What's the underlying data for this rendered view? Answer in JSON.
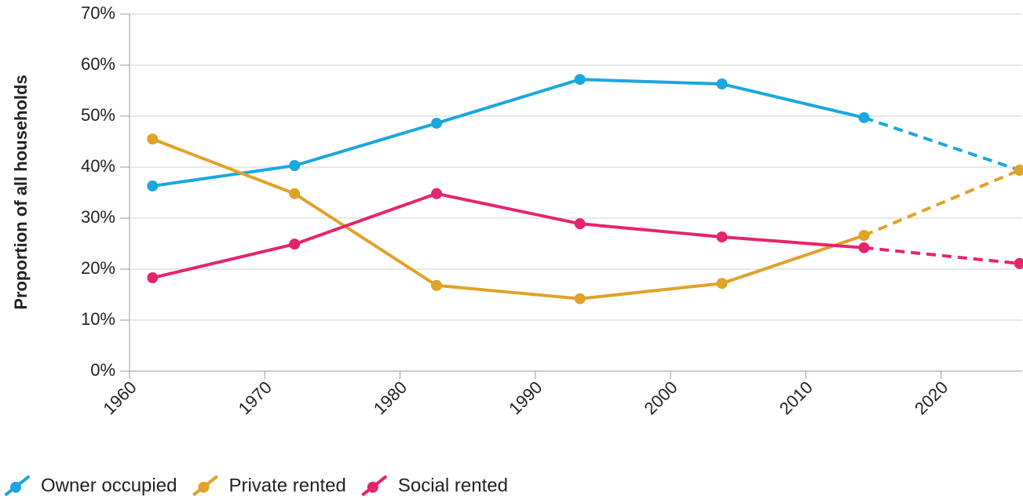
{
  "chart_data": {
    "type": "line",
    "y_label": "Proportion of all households",
    "x": [
      1961.7,
      1972.2,
      1982.7,
      1993.3,
      2003.8,
      2014.3,
      2025.8
    ],
    "projection_start_index": 5,
    "series": [
      {
        "name": "Owner occupied",
        "color": "#1aa7e0",
        "values": [
          36.3,
          40.3,
          48.6,
          57.2,
          56.3,
          49.7,
          39.4
        ]
      },
      {
        "name": "Private rented",
        "color": "#e0a228",
        "values": [
          45.5,
          34.8,
          16.8,
          14.2,
          17.2,
          26.6,
          39.4
        ]
      },
      {
        "name": "Social rented",
        "color": "#e6246e",
        "values": [
          18.3,
          24.9,
          34.8,
          28.9,
          26.3,
          24.2,
          21.1
        ]
      }
    ],
    "xlim": [
      1960,
      2026
    ],
    "xticks": [
      1960,
      1970,
      1980,
      1990,
      2000,
      2010,
      2020
    ],
    "ylim": [
      0,
      70
    ],
    "yticks": [
      {
        "value": 0,
        "label": "0%"
      },
      {
        "value": 10,
        "label": "10%"
      },
      {
        "value": 20,
        "label": "20%"
      },
      {
        "value": 30,
        "label": "30%"
      },
      {
        "value": 40,
        "label": "40%"
      },
      {
        "value": 50,
        "label": "50%"
      },
      {
        "value": 60,
        "label": "60%"
      },
      {
        "value": 70,
        "label": "70%"
      }
    ],
    "grid": true,
    "legend": "bottom-left"
  }
}
